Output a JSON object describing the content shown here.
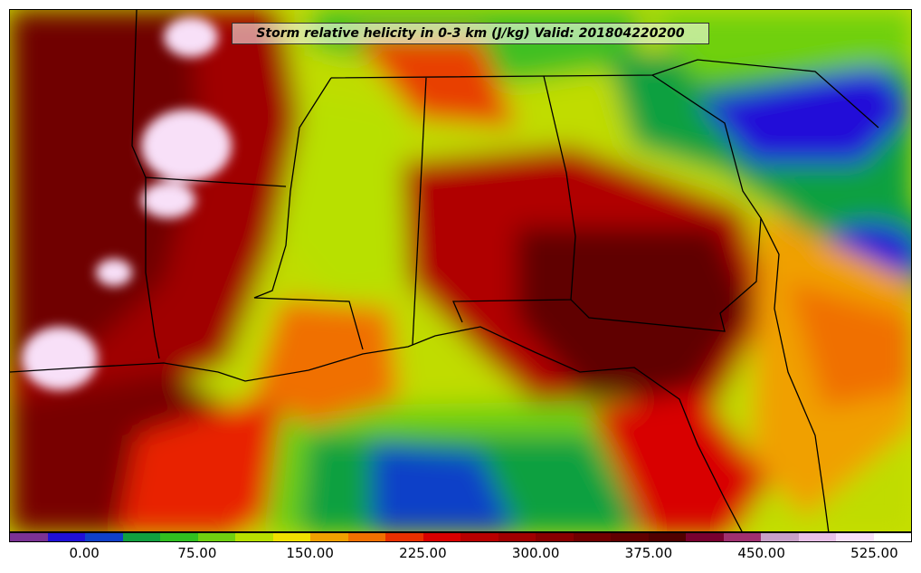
{
  "title": "Storm relative helicity in 0-3 km (J/kg) Valid: 201804220200",
  "colorbar": {
    "colors": [
      "#7b3294",
      "#2010d8",
      "#1040c8",
      "#10a040",
      "#30c020",
      "#70d010",
      "#b8e000",
      "#f0e000",
      "#f0a000",
      "#f07000",
      "#e83000",
      "#d80000",
      "#b80000",
      "#a00000",
      "#880000",
      "#700000",
      "#600000",
      "#500000",
      "#780030",
      "#a03070",
      "#c8a0c8",
      "#e8c0e8",
      "#f8e0f8",
      "#ffffff"
    ],
    "tick_labels": [
      "0.00",
      "75.00",
      "150.00",
      "225.00",
      "300.00",
      "375.00",
      "450.00",
      "525.00"
    ]
  }
}
